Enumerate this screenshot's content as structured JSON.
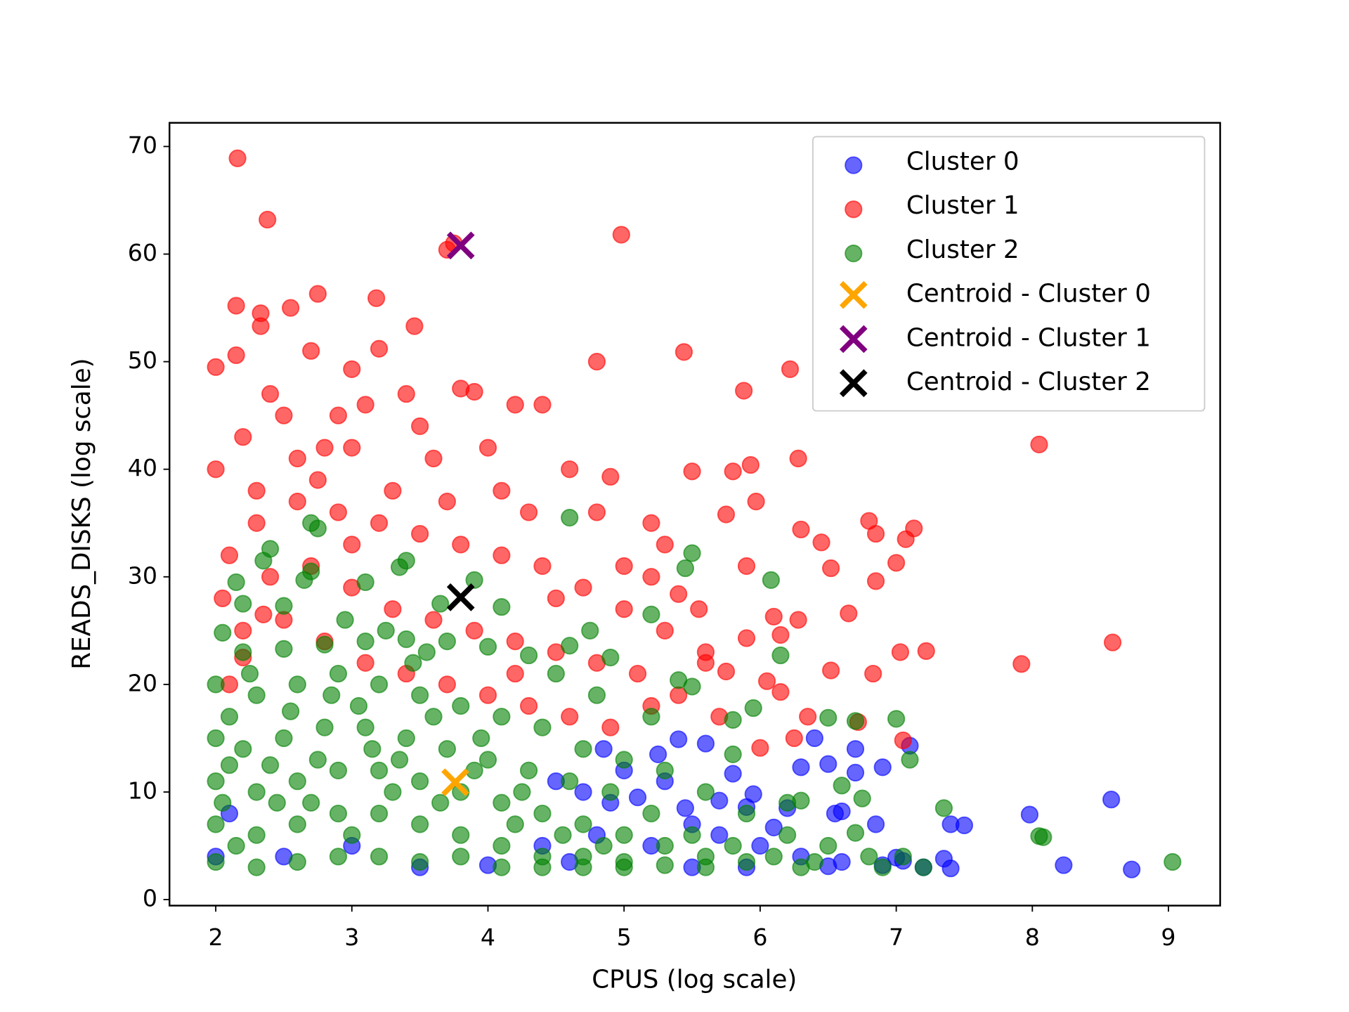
{
  "chart_data": {
    "type": "scatter",
    "x_label": "CPUS (log scale)",
    "y_label": "READS_DISKS (log scale)",
    "xlim": [
      1.66,
      9.38
    ],
    "ylim": [
      -0.56,
      72.2
    ],
    "xticks": [
      2,
      3,
      4,
      5,
      6,
      7,
      8,
      9
    ],
    "yticks": [
      0,
      10,
      20,
      30,
      40,
      50,
      60,
      70
    ],
    "legend": "upper right",
    "series": [
      {
        "name": "Cluster 0",
        "color": "#0000ff",
        "marker": "o",
        "x": [
          7.1,
          6.4,
          6.5,
          6.3,
          6.7,
          6.7,
          6.9,
          7.0,
          7.4,
          7.5,
          7.35,
          7.4,
          7.98,
          8.23,
          8.58,
          8.73,
          6.85,
          6.55,
          6.6,
          6.2,
          5.9,
          5.8,
          5.6,
          5.4,
          5.3,
          5.0,
          5.1,
          4.9,
          4.7,
          4.5,
          5.5,
          5.7,
          6.0,
          6.3,
          6.6,
          7.2,
          6.9,
          5.2,
          4.8,
          4.4,
          3.0,
          2.5,
          2.1,
          2.0,
          3.5,
          4.0,
          4.6,
          5.9,
          5.5,
          6.5,
          7.05,
          6.1,
          5.95,
          5.7,
          5.45,
          5.25,
          4.85
        ],
        "y": [
          14.3,
          15,
          12.6,
          12.3,
          14,
          11.8,
          12.3,
          3.9,
          7,
          6.9,
          3.8,
          2.9,
          7.9,
          3.2,
          9.3,
          2.8,
          7,
          8,
          8.2,
          8.5,
          8.6,
          11.7,
          14.5,
          14.9,
          11,
          12,
          9.5,
          9,
          10,
          11,
          7,
          6,
          5,
          4,
          3.5,
          3,
          3.2,
          5,
          6,
          5,
          5,
          4,
          8,
          4,
          3,
          3.2,
          3.5,
          3,
          3,
          3.1,
          3.6,
          6.7,
          9.8,
          9.2,
          8.5,
          13.5,
          14
        ]
      },
      {
        "name": "Cluster 1",
        "color": "#ff0000",
        "marker": "o",
        "x": [
          2.16,
          2.38,
          3.7,
          3.75,
          4.98,
          2.15,
          2.33,
          2.33,
          2.55,
          2.75,
          3.18,
          3.46,
          2.0,
          2.15,
          2.7,
          3.0,
          3.2,
          4.8,
          5.44,
          5.88,
          6.22,
          8.05,
          6.28,
          5.93,
          5.97,
          6.3,
          6.45,
          6.8,
          6.85,
          7.07,
          7.13,
          6.52,
          6.65,
          7.0,
          6.85,
          6.28,
          7.03,
          7.22,
          7.92,
          8.59,
          6.52,
          6.83,
          6.72,
          7.05,
          6.35,
          6.25,
          6.0,
          5.9,
          6.1,
          6.15,
          6.05,
          6.15,
          5.75,
          5.55,
          5.6,
          5.4,
          5.2,
          5.0,
          4.8,
          4.6,
          4.9,
          5.2,
          5.5,
          5.8,
          5.75,
          4.4,
          4.2,
          3.8,
          3.9,
          4.0,
          3.6,
          3.4,
          3.1,
          2.9,
          2.5,
          2.2,
          2.0,
          2.3,
          2.6,
          2.9,
          3.2,
          3.5,
          3.8,
          4.1,
          4.4,
          4.7,
          5.0,
          5.3,
          2.1,
          2.4,
          2.7,
          3.0,
          3.3,
          3.6,
          3.9,
          4.2,
          4.5,
          4.8,
          5.1,
          5.4,
          5.7,
          2.2,
          2.5,
          2.8,
          3.1,
          3.4,
          3.7,
          4.0,
          4.3,
          4.6,
          4.9,
          2.05,
          2.3,
          2.6,
          2.8,
          3.3,
          3.7,
          4.3,
          4.5,
          4.2,
          5.2,
          5.6,
          5.9,
          5.3,
          4.1,
          3.5,
          3.0,
          2.4,
          2.75,
          3.0,
          2.35,
          2.2,
          2.1
        ],
        "y": [
          68.9,
          63.2,
          60.4,
          61,
          61.8,
          55.2,
          54.5,
          53.3,
          55,
          56.3,
          55.9,
          53.3,
          49.5,
          50.6,
          51,
          49.3,
          51.2,
          50,
          50.9,
          47.3,
          49.3,
          42.3,
          41,
          40.4,
          37,
          34.4,
          33.2,
          35.2,
          34,
          33.5,
          34.5,
          30.8,
          26.6,
          31.3,
          29.6,
          26,
          23,
          23.1,
          21.9,
          23.9,
          21.3,
          21,
          16.5,
          14.8,
          17,
          15,
          14.1,
          24.3,
          26.3,
          24.6,
          20.3,
          19.3,
          21.2,
          27,
          23,
          28.4,
          30,
          31,
          36,
          40,
          39.3,
          35,
          39.8,
          39.8,
          35.8,
          46,
          46,
          47.5,
          47.2,
          42,
          41,
          47,
          46,
          45,
          45,
          43,
          40,
          38,
          37,
          36,
          35,
          34,
          33,
          32,
          31,
          29,
          27,
          25,
          32,
          30,
          31,
          29,
          27,
          26,
          25,
          24,
          23,
          22,
          21,
          19,
          17,
          25,
          26,
          24,
          22,
          21,
          20,
          19,
          18,
          17,
          16,
          28,
          35,
          41,
          42,
          38,
          37,
          36,
          28,
          21,
          18,
          22,
          31,
          33,
          38,
          44,
          42,
          47,
          39,
          33,
          26.5,
          22.5,
          20
        ]
      },
      {
        "name": "Cluster 2",
        "color": "#008000",
        "marker": "o",
        "x": [
          9.03,
          8.05,
          8.08,
          7.35,
          7.2,
          7.1,
          7.0,
          6.7,
          6.5,
          6.75,
          6.6,
          6.7,
          6.8,
          7.05,
          6.9,
          6.2,
          6.3,
          6.15,
          6.08,
          5.5,
          5.45,
          4.6,
          2.7,
          2.75,
          2.4,
          2.35,
          3.4,
          3.35,
          2.7,
          2.65,
          3.1,
          2.15,
          2.05,
          2.2,
          2.5,
          3.9,
          3.65,
          4.1,
          5.2,
          4.75,
          4.6,
          5.8,
          5.95,
          5.8,
          5.5,
          5.4,
          5.2,
          4.8,
          4.9,
          4.5,
          4.3,
          4.0,
          3.7,
          3.4,
          3.1,
          2.8,
          2.5,
          2.2,
          2.0,
          2.1,
          2.3,
          2.6,
          2.9,
          3.2,
          3.5,
          3.8,
          4.1,
          4.4,
          4.7,
          5.0,
          5.3,
          5.6,
          5.9,
          6.2,
          6.5,
          2.0,
          2.2,
          2.5,
          2.8,
          3.1,
          3.4,
          3.7,
          4.0,
          4.3,
          4.6,
          4.9,
          5.2,
          5.5,
          5.8,
          6.1,
          6.4,
          2.0,
          2.3,
          2.6,
          2.9,
          3.2,
          3.5,
          3.8,
          4.1,
          4.4,
          4.7,
          5.0,
          5.3,
          5.6,
          5.9,
          6.3,
          2.0,
          2.3,
          2.6,
          2.9,
          3.2,
          3.5,
          3.8,
          4.1,
          4.4,
          4.7,
          5.0,
          5.3,
          5.6,
          2.0,
          2.3,
          2.6,
          2.9,
          3.2,
          3.5,
          3.8,
          4.1,
          4.4,
          4.7,
          5.0,
          2.15,
          2.45,
          2.75,
          3.05,
          3.35,
          3.65,
          3.95,
          4.25,
          4.55,
          4.85,
          2.1,
          2.4,
          2.7,
          3.0,
          3.3,
          3.6,
          3.9,
          4.2,
          2.55,
          2.85,
          3.15,
          3.45,
          2.25,
          2.95,
          3.25,
          3.55,
          2.05
        ],
        "y": [
          3.5,
          5.9,
          5.8,
          8.5,
          3,
          13,
          16.8,
          16.6,
          16.9,
          9.4,
          10.6,
          6.2,
          4,
          4,
          3,
          9,
          9.2,
          22.7,
          29.7,
          32.2,
          30.8,
          35.5,
          35,
          34.5,
          32.6,
          31.5,
          31.5,
          30.9,
          30.5,
          29.7,
          29.5,
          29.5,
          24.8,
          27.5,
          27.3,
          29.7,
          27.5,
          27.2,
          26.5,
          25,
          23.6,
          13.5,
          17.8,
          16.7,
          19.8,
          20.4,
          17,
          19,
          22.5,
          21,
          22.7,
          23.5,
          24,
          24.2,
          24,
          23.7,
          23.3,
          23,
          20,
          17,
          19,
          20,
          21,
          20,
          19,
          18,
          17,
          16,
          14,
          13,
          12,
          10,
          8,
          6,
          5,
          15,
          14,
          15,
          16,
          16,
          15,
          14,
          13,
          12,
          11,
          10,
          8,
          6,
          5,
          4,
          3.5,
          11,
          10,
          11,
          12,
          12,
          11,
          10,
          9,
          8,
          7,
          6,
          5,
          4,
          3.5,
          3,
          7,
          6,
          7,
          8,
          8,
          7,
          6,
          5,
          4,
          4,
          3.5,
          3.2,
          3,
          3.5,
          3,
          3.5,
          4,
          4,
          3.5,
          4,
          3,
          3,
          3,
          3,
          5,
          9,
          13,
          18,
          13,
          9,
          15,
          10,
          6,
          5,
          12.5,
          12.5,
          9,
          6,
          10,
          17,
          12,
          7,
          17.5,
          19,
          14,
          22,
          21,
          26,
          25,
          23,
          9
        ]
      },
      {
        "name": "Centroid - Cluster 0",
        "color": "#ffa500",
        "marker": "x",
        "x": [
          3.76
        ],
        "y": [
          10.9
        ]
      },
      {
        "name": "Centroid - Cluster 1",
        "color": "#800080",
        "marker": "x",
        "x": [
          3.8
        ],
        "y": [
          60.8
        ]
      },
      {
        "name": "Centroid - Cluster 2",
        "color": "#000000",
        "marker": "x",
        "x": [
          3.8
        ],
        "y": [
          28.1
        ]
      }
    ]
  }
}
